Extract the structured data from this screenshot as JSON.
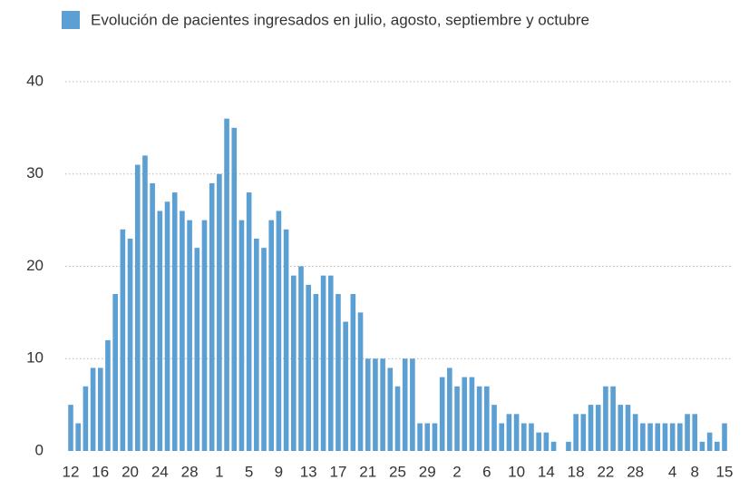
{
  "chart_data": {
    "type": "bar",
    "series": [
      {
        "name": "Evolución de pacientes ingresados en julio, agosto, septiembre y octubre",
        "color": "#5b9fd3",
        "values": [
          5,
          3,
          7,
          9,
          9,
          12,
          17,
          24,
          23,
          31,
          32,
          29,
          26,
          27,
          28,
          26,
          25,
          22,
          25,
          29,
          30,
          36,
          35,
          25,
          28,
          23,
          22,
          25,
          26,
          24,
          19,
          20,
          18,
          17,
          19,
          19,
          17,
          14,
          17,
          15,
          10,
          10,
          10,
          9,
          7,
          10,
          10,
          3,
          3,
          3,
          8,
          9,
          7,
          8,
          8,
          7,
          7,
          5,
          3,
          4,
          4,
          3,
          3,
          2,
          2,
          1,
          0,
          1,
          4,
          4,
          5,
          5,
          7,
          7,
          5,
          5,
          4,
          3,
          3,
          3,
          3,
          3,
          3,
          4,
          4,
          1,
          2,
          1,
          3
        ]
      }
    ],
    "categories": [
      "12",
      null,
      null,
      null,
      "16",
      null,
      null,
      null,
      "20",
      null,
      null,
      null,
      "24",
      null,
      null,
      null,
      "28",
      null,
      null,
      null,
      "1",
      null,
      null,
      null,
      "5",
      null,
      null,
      null,
      "9",
      null,
      null,
      null,
      "13",
      null,
      null,
      null,
      "17",
      null,
      null,
      null,
      "21",
      null,
      null,
      null,
      "25",
      null,
      null,
      null,
      "29",
      null,
      null,
      null,
      "2",
      null,
      null,
      null,
      "6",
      null,
      null,
      null,
      "10",
      null,
      null,
      null,
      "14",
      null,
      null,
      null,
      "18",
      null,
      null,
      null,
      "22",
      null,
      null,
      null,
      "28",
      null,
      null,
      null,
      null,
      "4",
      null,
      null,
      "8",
      null,
      null,
      null,
      "15"
    ],
    "ylim": [
      0,
      40
    ],
    "yticks": [
      0,
      10,
      20,
      30,
      40
    ],
    "grid": true,
    "legend": "top"
  }
}
